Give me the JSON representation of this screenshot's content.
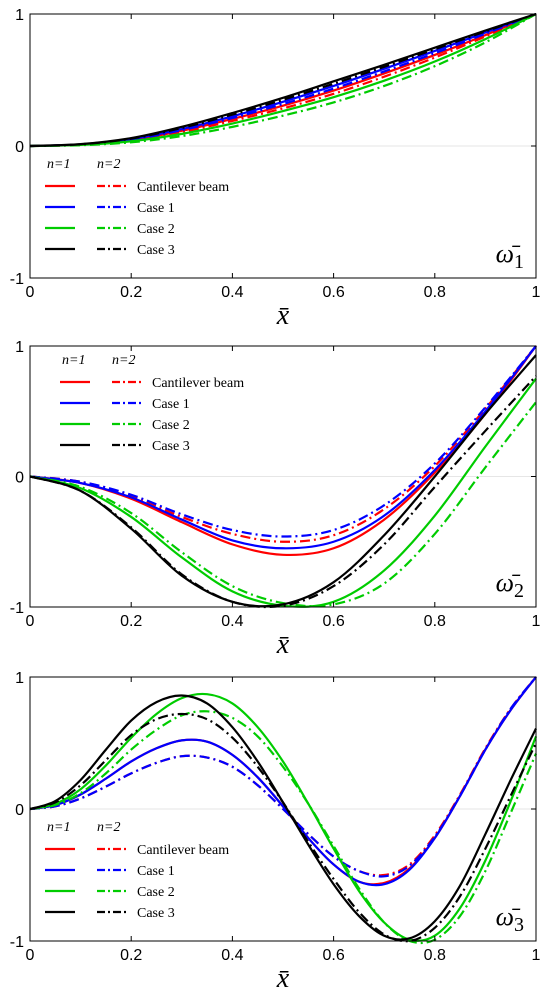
{
  "chart_data": [
    {
      "type": "line",
      "xlabel": "x̄",
      "panel_label": {
        "base": "ω̄",
        "sub": "1"
      },
      "xlim": [
        0,
        1
      ],
      "ylim": [
        -1,
        1
      ],
      "xticks": [
        "0",
        "0.2",
        "0.4",
        "0.6",
        "0.8",
        "1"
      ],
      "yticks": [
        "-1",
        "0",
        "1"
      ],
      "legend": {
        "placement": "left",
        "header": [
          "n=1",
          "n=2"
        ],
        "entries": [
          "Cantilever beam",
          "Case 1",
          "Case 2",
          "Case 3"
        ]
      },
      "x": [
        0,
        0.1,
        0.2,
        0.3,
        0.4,
        0.5,
        0.6,
        0.7,
        0.8,
        0.9,
        1.0
      ],
      "series": [
        {
          "name": "Cantilever beam",
          "n": 1,
          "color": "#ff0000",
          "style": "solid",
          "values": [
            0,
            0.01,
            0.045,
            0.115,
            0.205,
            0.305,
            0.42,
            0.55,
            0.69,
            0.84,
            1.0
          ]
        },
        {
          "name": "Cantilever beam",
          "n": 2,
          "color": "#ff0000",
          "style": "dashdot",
          "values": [
            0,
            0.009,
            0.04,
            0.105,
            0.19,
            0.285,
            0.395,
            0.525,
            0.67,
            0.83,
            1.0
          ]
        },
        {
          "name": "Case 1",
          "n": 1,
          "color": "#0000ff",
          "style": "solid",
          "values": [
            0,
            0.012,
            0.052,
            0.128,
            0.225,
            0.335,
            0.455,
            0.585,
            0.72,
            0.86,
            1.0
          ]
        },
        {
          "name": "Case 1",
          "n": 2,
          "color": "#0000ff",
          "style": "dashdot",
          "values": [
            0,
            0.011,
            0.048,
            0.12,
            0.212,
            0.318,
            0.435,
            0.565,
            0.703,
            0.85,
            1.0
          ]
        },
        {
          "name": "Case 2",
          "n": 1,
          "color": "#00cc00",
          "style": "solid",
          "values": [
            0,
            0.008,
            0.036,
            0.092,
            0.17,
            0.265,
            0.37,
            0.495,
            0.64,
            0.81,
            1.0
          ]
        },
        {
          "name": "Case 2",
          "n": 2,
          "color": "#00cc00",
          "style": "dashdot",
          "values": [
            0,
            0.006,
            0.028,
            0.075,
            0.145,
            0.23,
            0.33,
            0.455,
            0.605,
            0.785,
            1.0
          ]
        },
        {
          "name": "Case 3",
          "n": 1,
          "color": "#000000",
          "style": "solid",
          "values": [
            0,
            0.014,
            0.06,
            0.145,
            0.25,
            0.365,
            0.49,
            0.615,
            0.745,
            0.875,
            1.0
          ]
        },
        {
          "name": "Case 3",
          "n": 2,
          "color": "#000000",
          "style": "dashdot",
          "values": [
            0,
            0.013,
            0.056,
            0.137,
            0.238,
            0.35,
            0.472,
            0.6,
            0.733,
            0.868,
            1.0
          ]
        }
      ]
    },
    {
      "type": "line",
      "xlabel": "x̄",
      "panel_label": {
        "base": "ω̄",
        "sub": "2"
      },
      "xlim": [
        0,
        1
      ],
      "ylim": [
        -1,
        1
      ],
      "xticks": [
        "0",
        "0.2",
        "0.4",
        "0.6",
        "0.8",
        "1"
      ],
      "yticks": [
        "-1",
        "0",
        "1"
      ],
      "legend": {
        "placement": "top-left",
        "header": [
          "n=1",
          "n=2"
        ],
        "entries": [
          "Cantilever beam",
          "Case 1",
          "Case 2",
          "Case 3"
        ]
      },
      "x": [
        0,
        0.1,
        0.2,
        0.3,
        0.4,
        0.5,
        0.6,
        0.7,
        0.8,
        0.9,
        1.0
      ],
      "series": [
        {
          "name": "Cantilever beam",
          "n": 1,
          "color": "#ff0000",
          "style": "solid",
          "values": [
            0,
            -0.05,
            -0.17,
            -0.35,
            -0.52,
            -0.6,
            -0.55,
            -0.33,
            0.03,
            0.48,
            1.0
          ]
        },
        {
          "name": "Cantilever beam",
          "n": 2,
          "color": "#ff0000",
          "style": "dashdot",
          "values": [
            0,
            -0.04,
            -0.15,
            -0.31,
            -0.44,
            -0.5,
            -0.45,
            -0.25,
            0.08,
            0.52,
            1.0
          ]
        },
        {
          "name": "Case 1",
          "n": 1,
          "color": "#0000ff",
          "style": "solid",
          "values": [
            0,
            -0.05,
            -0.16,
            -0.33,
            -0.49,
            -0.55,
            -0.5,
            -0.3,
            0.05,
            0.5,
            1.0
          ]
        },
        {
          "name": "Case 1",
          "n": 2,
          "color": "#0000ff",
          "style": "dashdot",
          "values": [
            0,
            -0.04,
            -0.14,
            -0.29,
            -0.41,
            -0.46,
            -0.41,
            -0.22,
            0.1,
            0.53,
            1.0
          ]
        },
        {
          "name": "Case 2",
          "n": 1,
          "color": "#00cc00",
          "style": "solid",
          "values": [
            0,
            -0.09,
            -0.31,
            -0.62,
            -0.88,
            -0.99,
            -0.96,
            -0.72,
            -0.3,
            0.23,
            0.75
          ]
        },
        {
          "name": "Case 2",
          "n": 2,
          "color": "#00cc00",
          "style": "dashdot",
          "values": [
            0,
            -0.08,
            -0.28,
            -0.58,
            -0.84,
            -0.97,
            -0.98,
            -0.82,
            -0.44,
            0.07,
            0.57
          ]
        },
        {
          "name": "Case 3",
          "n": 1,
          "color": "#000000",
          "style": "solid",
          "values": [
            0,
            -0.11,
            -0.4,
            -0.76,
            -0.96,
            -0.98,
            -0.81,
            -0.45,
            0.0,
            0.48,
            0.93
          ]
        },
        {
          "name": "Case 3",
          "n": 2,
          "color": "#000000",
          "style": "dashdot",
          "values": [
            0,
            -0.11,
            -0.39,
            -0.75,
            -0.96,
            -0.99,
            -0.84,
            -0.52,
            -0.08,
            0.35,
            0.77
          ]
        }
      ]
    },
    {
      "type": "line",
      "xlabel": "x̄",
      "panel_label": {
        "base": "ω̄",
        "sub": "3"
      },
      "xlim": [
        0,
        1
      ],
      "ylim": [
        -1,
        1
      ],
      "xticks": [
        "0",
        "0.2",
        "0.4",
        "0.6",
        "0.8",
        "1"
      ],
      "yticks": [
        "-1",
        "0",
        "1"
      ],
      "legend": {
        "placement": "bottom-left",
        "header": [
          "n=1",
          "n=2"
        ],
        "entries": [
          "Cantilever beam",
          "Case 1",
          "Case 2",
          "Case 3"
        ]
      },
      "x": [
        0,
        0.05,
        0.1,
        0.15,
        0.2,
        0.25,
        0.3,
        0.35,
        0.4,
        0.45,
        0.5,
        0.55,
        0.6,
        0.65,
        0.7,
        0.75,
        0.8,
        0.85,
        0.9,
        0.95,
        1.0
      ],
      "series": [
        {
          "name": "Cantilever beam",
          "n": 1,
          "color": "#ff0000",
          "style": "solid",
          "values": [
            0,
            0.03,
            0.11,
            0.23,
            0.36,
            0.46,
            0.52,
            0.51,
            0.41,
            0.24,
            0.02,
            -0.22,
            -0.42,
            -0.55,
            -0.56,
            -0.45,
            -0.22,
            0.1,
            0.45,
            0.75,
            1.0
          ]
        },
        {
          "name": "Cantilever beam",
          "n": 2,
          "color": "#ff0000",
          "style": "dashdot",
          "values": [
            0,
            0.02,
            0.08,
            0.17,
            0.27,
            0.35,
            0.4,
            0.39,
            0.32,
            0.18,
            0.0,
            -0.19,
            -0.36,
            -0.47,
            -0.5,
            -0.42,
            -0.2,
            0.11,
            0.46,
            0.76,
            1.0
          ]
        },
        {
          "name": "Case 1",
          "n": 1,
          "color": "#0000ff",
          "style": "solid",
          "values": [
            0,
            0.03,
            0.11,
            0.23,
            0.36,
            0.46,
            0.52,
            0.51,
            0.41,
            0.24,
            0.02,
            -0.22,
            -0.42,
            -0.55,
            -0.57,
            -0.46,
            -0.22,
            0.1,
            0.45,
            0.75,
            1.0
          ]
        },
        {
          "name": "Case 1",
          "n": 2,
          "color": "#0000ff",
          "style": "dashdot",
          "values": [
            0,
            0.02,
            0.08,
            0.17,
            0.27,
            0.35,
            0.4,
            0.39,
            0.32,
            0.18,
            0.0,
            -0.19,
            -0.36,
            -0.47,
            -0.51,
            -0.43,
            -0.21,
            0.1,
            0.45,
            0.76,
            1.0
          ]
        },
        {
          "name": "Case 2",
          "n": 1,
          "color": "#00cc00",
          "style": "solid",
          "values": [
            0,
            0.04,
            0.15,
            0.33,
            0.54,
            0.72,
            0.84,
            0.87,
            0.8,
            0.62,
            0.36,
            0.04,
            -0.3,
            -0.62,
            -0.86,
            -0.99,
            -0.96,
            -0.75,
            -0.39,
            0.06,
            0.55
          ]
        },
        {
          "name": "Case 2",
          "n": 2,
          "color": "#00cc00",
          "style": "dashdot",
          "values": [
            0,
            0.03,
            0.12,
            0.27,
            0.45,
            0.6,
            0.71,
            0.74,
            0.69,
            0.55,
            0.32,
            0.04,
            -0.28,
            -0.6,
            -0.86,
            -1.0,
            -0.99,
            -0.81,
            -0.47,
            -0.03,
            0.42
          ]
        },
        {
          "name": "Case 3",
          "n": 1,
          "color": "#000000",
          "style": "solid",
          "values": [
            0,
            0.06,
            0.22,
            0.45,
            0.67,
            0.81,
            0.86,
            0.8,
            0.62,
            0.36,
            0.05,
            -0.27,
            -0.57,
            -0.81,
            -0.96,
            -0.98,
            -0.85,
            -0.58,
            -0.19,
            0.22,
            0.61
          ]
        },
        {
          "name": "Case 3",
          "n": 2,
          "color": "#000000",
          "style": "dashdot",
          "values": [
            0,
            0.05,
            0.18,
            0.37,
            0.56,
            0.68,
            0.72,
            0.68,
            0.54,
            0.32,
            0.05,
            -0.25,
            -0.53,
            -0.78,
            -0.95,
            -1.0,
            -0.9,
            -0.66,
            -0.3,
            0.1,
            0.5
          ]
        }
      ]
    }
  ]
}
